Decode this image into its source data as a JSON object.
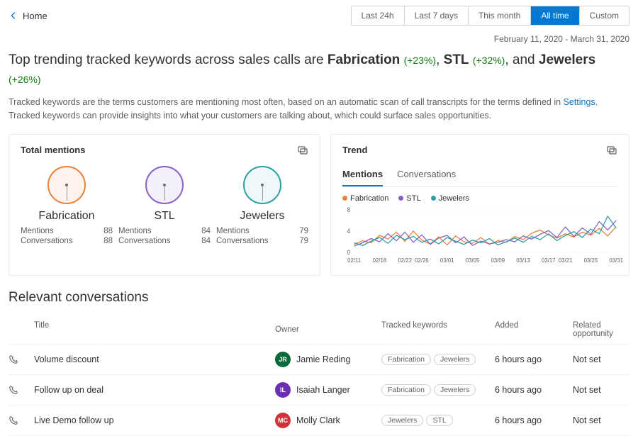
{
  "nav": {
    "home": "Home"
  },
  "timeFilters": {
    "options": [
      "Last 24h",
      "Last 7 days",
      "This month",
      "All time",
      "Custom"
    ],
    "active": 3
  },
  "dateRange": "February 11, 2020 - March 31, 2020",
  "headline": {
    "prefix": "Top trending tracked keywords across sales calls are ",
    "kw1": "Fabrication",
    "pct1": "(+23%)",
    "sep1": ", ",
    "kw2": "STL",
    "pct2": "(+32%)",
    "sep2": ", and ",
    "kw3": "Jewelers",
    "pct3": "(+26%)"
  },
  "description": {
    "line1a": "Tracked keywords are the terms customers are mentioning most often, based on an automatic scan of call transcripts for the terms defined in ",
    "settingsLink": "Settings",
    "line1b": ".",
    "line2": "Tracked keywords can provide insights into what your customers are talking about, which could surface sales opportunities."
  },
  "totalMentions": {
    "title": "Total mentions",
    "labels": {
      "mentions": "Mentions",
      "conversations": "Conversations"
    },
    "items": [
      {
        "name": "Fabrication",
        "mentions": "88",
        "conversations": "88",
        "color": "#e8833a",
        "bg": "#fdf3ec"
      },
      {
        "name": "STL",
        "mentions": "84",
        "conversations": "84",
        "color": "#8661c5",
        "bg": "#f4f0fa"
      },
      {
        "name": "Jewelers",
        "mentions": "79",
        "conversations": "79",
        "color": "#2aa0a4",
        "bg": "#eef8f8"
      }
    ]
  },
  "trend": {
    "title": "Trend",
    "tabs": [
      "Mentions",
      "Conversations"
    ],
    "activeTab": 0,
    "legend": [
      {
        "label": "Fabrication",
        "color": "#e8833a"
      },
      {
        "label": "STL",
        "color": "#8661c5"
      },
      {
        "label": "Jewelers",
        "color": "#2aa0a4"
      }
    ],
    "chart": {
      "yTicks": [
        "8",
        "4",
        "0"
      ],
      "xTicks": [
        "02/11",
        "02/18",
        "02/22",
        "02/26",
        "03/01",
        "03/05",
        "03/09",
        "03/13",
        "03/17",
        "03/21",
        "03/25",
        "03/31"
      ],
      "ylim": [
        0,
        8
      ],
      "series": {
        "fabrication": [
          1.5,
          2.2,
          1.8,
          3.2,
          2.5,
          3.8,
          2.1,
          4.0,
          2.3,
          1.6,
          2.9,
          1.4,
          3.1,
          2.0,
          1.7,
          2.8,
          1.5,
          2.2,
          1.9,
          3.0,
          2.4,
          3.6,
          4.2,
          3.3,
          2.7,
          3.5,
          2.9,
          3.8,
          3.2,
          4.5,
          3.1,
          4.8
        ],
        "stl": [
          1.2,
          1.8,
          2.6,
          2.0,
          3.5,
          2.2,
          3.8,
          1.9,
          3.3,
          1.5,
          2.7,
          3.2,
          1.8,
          2.9,
          1.3,
          2.1,
          1.6,
          1.9,
          2.4,
          2.0,
          3.1,
          2.5,
          3.4,
          4.1,
          2.8,
          4.8,
          3.0,
          4.6,
          3.4,
          5.8,
          4.2,
          6.0
        ],
        "jewelers": [
          1.8,
          1.3,
          2.1,
          2.8,
          1.7,
          3.2,
          2.4,
          3.0,
          1.9,
          2.5,
          1.6,
          2.8,
          2.1,
          1.5,
          2.3,
          1.8,
          2.6,
          1.4,
          2.0,
          2.7,
          1.9,
          3.0,
          2.4,
          3.5,
          2.2,
          3.2,
          3.9,
          2.8,
          4.4,
          3.5,
          6.8,
          4.6
        ]
      },
      "colors": {
        "fabrication": "#e8833a",
        "stl": "#8661c5",
        "jewelers": "#2aa0a4"
      }
    }
  },
  "conversations": {
    "title": "Relevant conversations",
    "columns": {
      "title": "Title",
      "owner": "Owner",
      "keywords": "Tracked keywords",
      "added": "Added",
      "opportunity": "Related opportunity"
    },
    "rows": [
      {
        "title": "Volume discount",
        "owner": "Jamie Reding",
        "initials": "JR",
        "avatarColor": "#0b6a3c",
        "keywords": [
          "Fabrication",
          "Jewelers"
        ],
        "added": "6 hours ago",
        "opportunity": "Not set"
      },
      {
        "title": "Follow up on deal",
        "owner": "Isaiah Langer",
        "initials": "IL",
        "avatarColor": "#6b2fb3",
        "keywords": [
          "Fabrication",
          "Jewelers"
        ],
        "added": "6 hours ago",
        "opportunity": "Not set"
      },
      {
        "title": "Live Demo follow up",
        "owner": "Molly Clark",
        "initials": "MC",
        "avatarColor": "#d13438",
        "keywords": [
          "Jewelers",
          "STL"
        ],
        "added": "6 hours ago",
        "opportunity": "Not set"
      }
    ]
  }
}
